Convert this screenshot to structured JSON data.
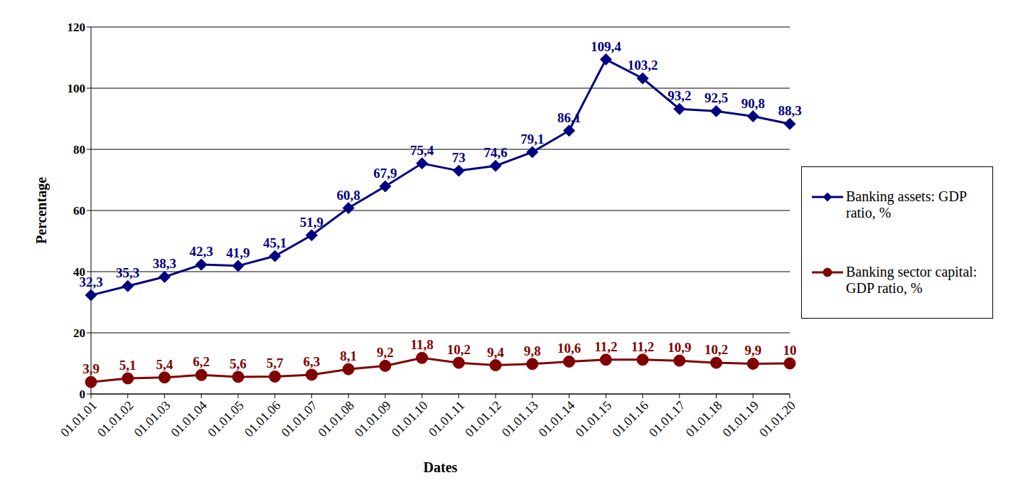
{
  "chart_data": {
    "type": "line",
    "x_label": "Dates",
    "y_label": "Percentage",
    "categories": [
      "01.01.01",
      "01.01.02",
      "01.01.03",
      "01.01.04",
      "01.01.05",
      "01.01.06",
      "01.01.07",
      "01.01.08",
      "01.01.09",
      "01.01.10",
      "01.01.11",
      "01.01.12",
      "01.01.13",
      "01.01.14",
      "01.01.15",
      "01.01.16",
      "01.01.17",
      "01.01.18",
      "01.01.19",
      "01.01.20"
    ],
    "series": [
      {
        "name": "Banking assets: GDP ratio, %",
        "color": "#000080",
        "marker": "diamond",
        "values": [
          32.3,
          35.3,
          38.3,
          42.3,
          41.9,
          45.1,
          51.9,
          60.8,
          67.9,
          75.4,
          73,
          74.6,
          79.1,
          86.1,
          109.4,
          103.2,
          93.2,
          92.5,
          90.8,
          88.3
        ],
        "value_labels": [
          "32,3",
          "35,3",
          "38,3",
          "42,3",
          "41,9",
          "45,1",
          "51,9",
          "60,8",
          "67,9",
          "75,4",
          "73",
          "74,6",
          "79,1",
          "86,1",
          "109,4",
          "103,2",
          "93,2",
          "92,5",
          "90,8",
          "88,3"
        ]
      },
      {
        "name": "Banking sector capital: GDP ratio, %",
        "color": "#800000",
        "marker": "circle",
        "values": [
          3.9,
          5.1,
          5.4,
          6.2,
          5.6,
          5.7,
          6.3,
          8.1,
          9.2,
          11.8,
          10.2,
          9.4,
          9.8,
          10.6,
          11.2,
          11.2,
          10.9,
          10.2,
          9.9,
          10
        ],
        "value_labels": [
          "3,9",
          "5,1",
          "5,4",
          "6,2",
          "5,6",
          "5,7",
          "6,3",
          "8,1",
          "9,2",
          "11,8",
          "10,2",
          "9,4",
          "9,8",
          "10,6",
          "11,2",
          "11,2",
          "10,9",
          "10,2",
          "9,9",
          "10"
        ]
      }
    ],
    "ylim": [
      0,
      120
    ],
    "yticks": [
      0,
      20,
      40,
      60,
      80,
      100,
      120
    ],
    "grid": true,
    "legend": "right",
    "data_labels": true
  }
}
